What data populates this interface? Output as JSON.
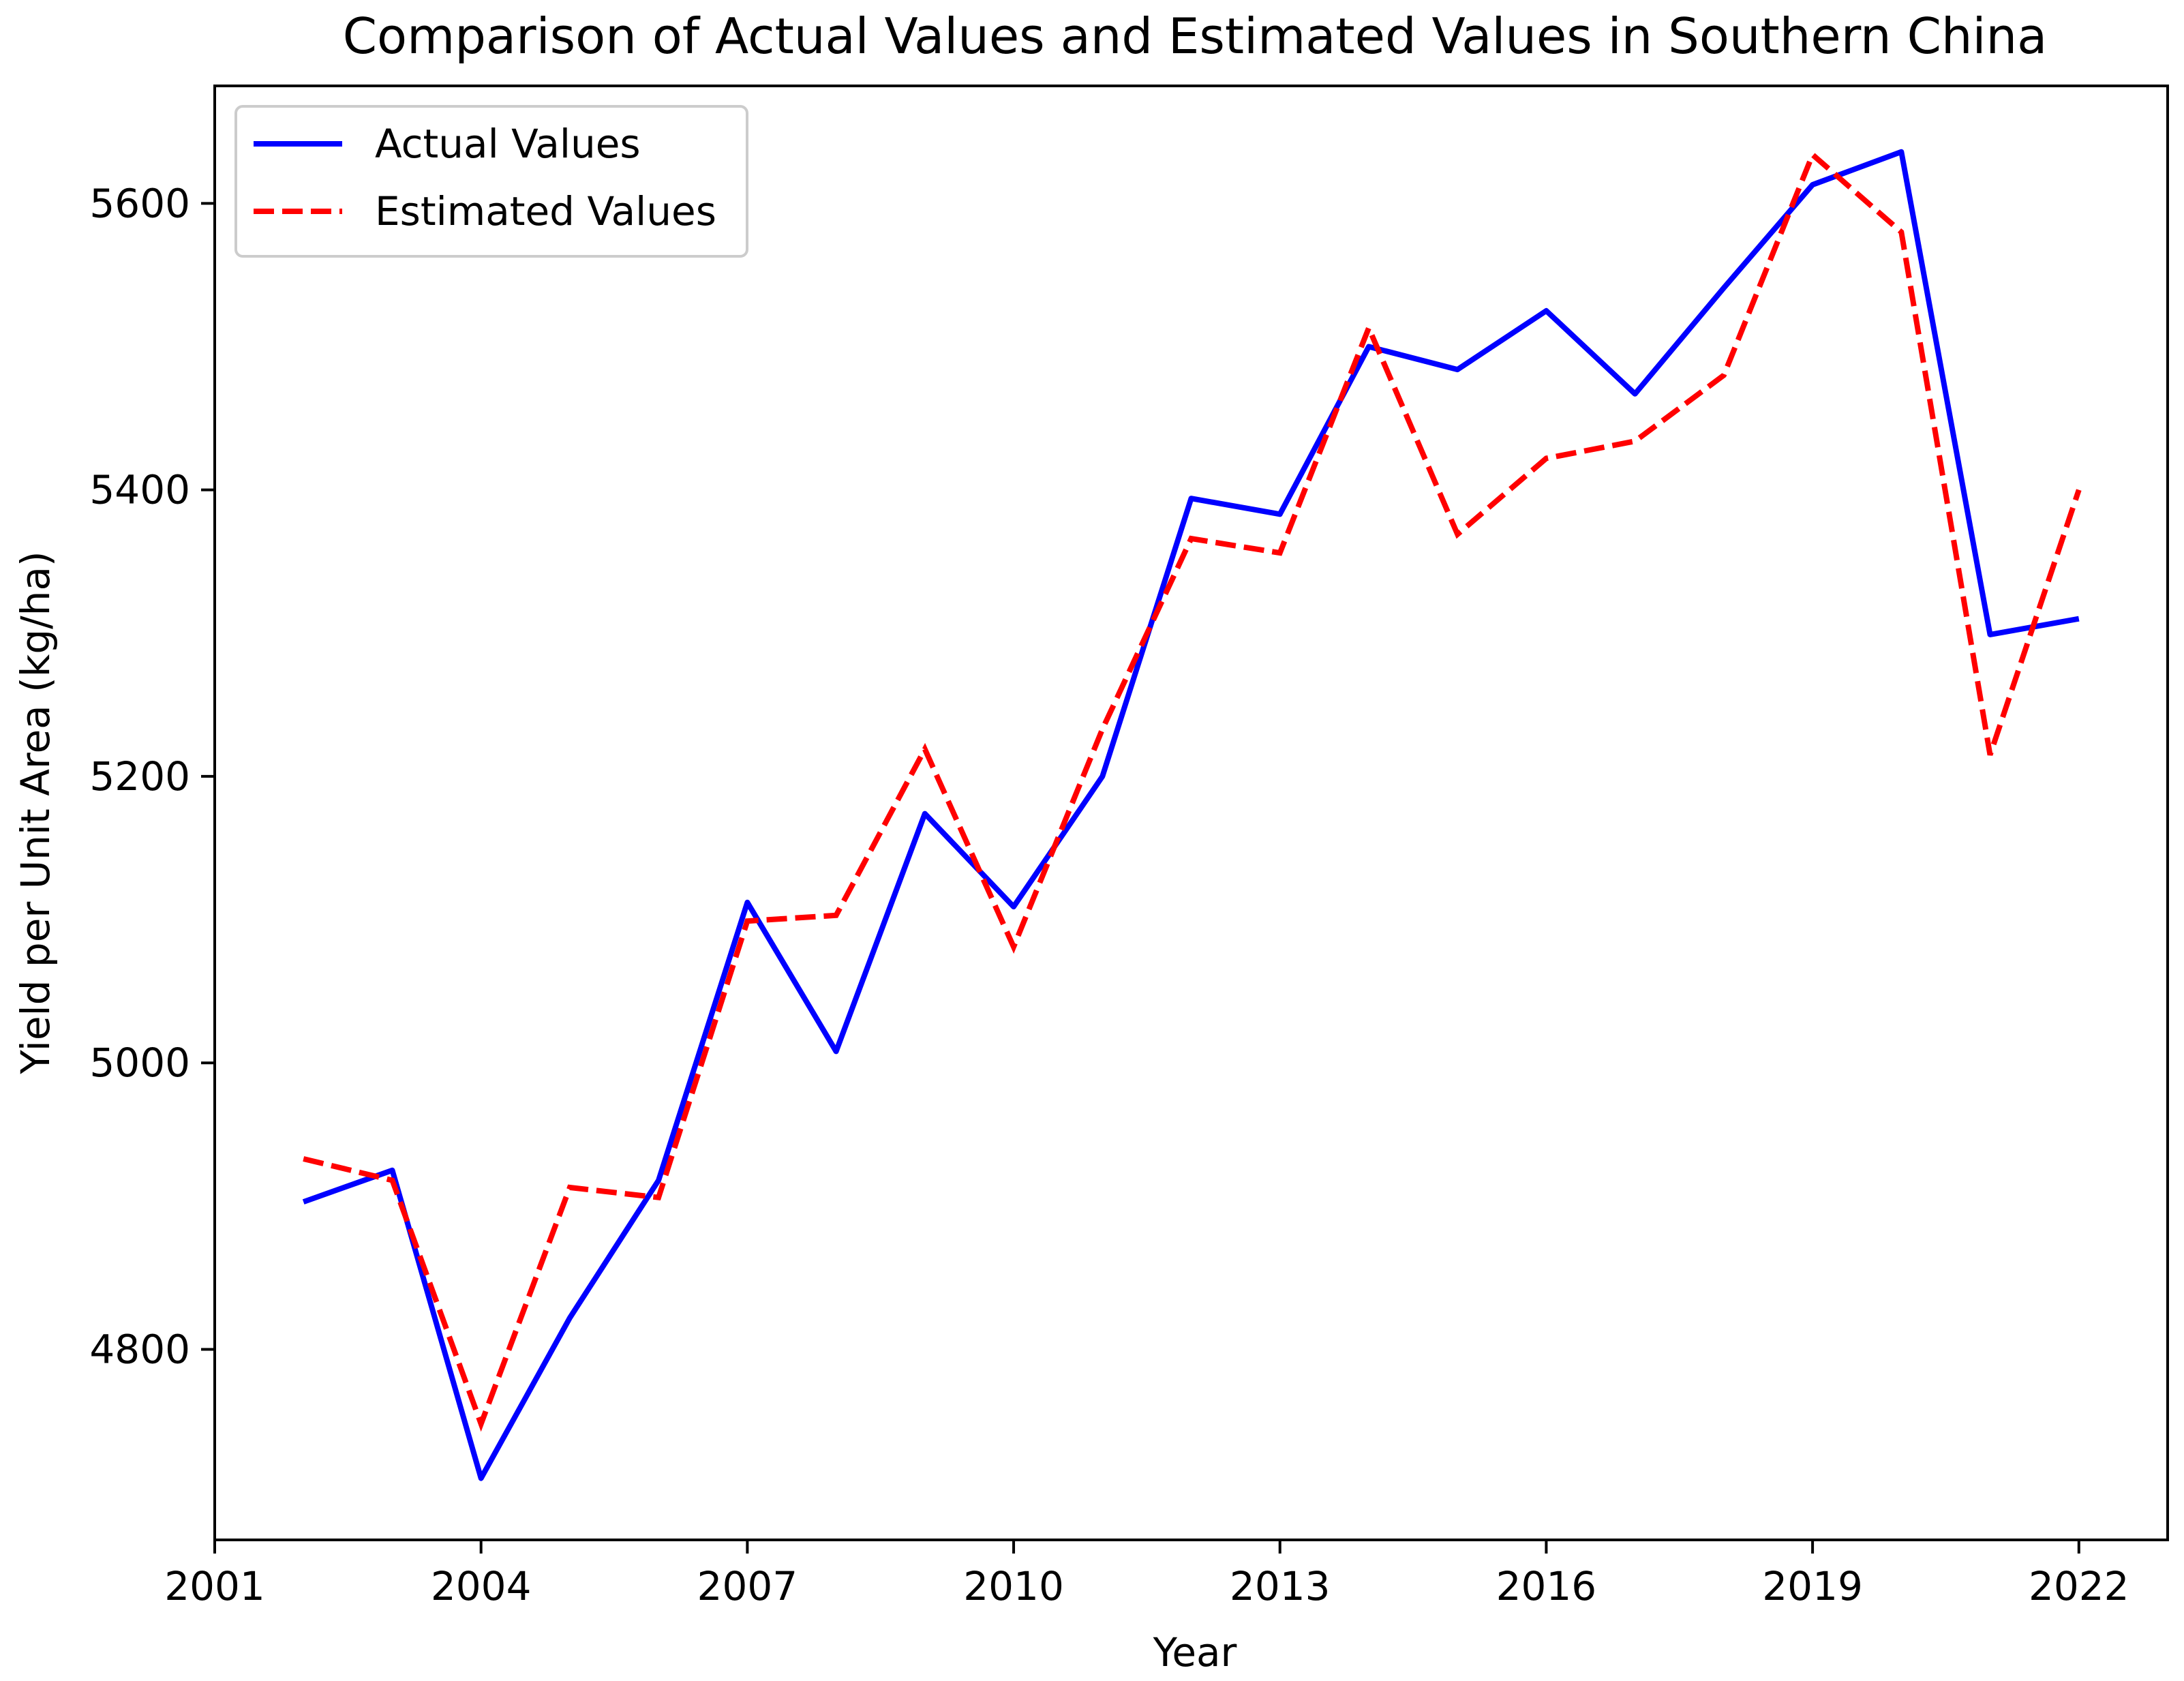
{
  "chart_data": {
    "type": "line",
    "title": "Comparison of Actual Values and Estimated Values in Southern China",
    "xlabel": "Year",
    "ylabel": "Yield per Unit Area (kg/ha)",
    "xlim": [
      2001,
      2023
    ],
    "ylim": [
      4667,
      5682
    ],
    "xticks": [
      2001,
      2004,
      2007,
      2010,
      2013,
      2016,
      2019,
      2022
    ],
    "yticks": [
      4800,
      5000,
      5200,
      5400,
      5600
    ],
    "grid": false,
    "legend_position": "top-left",
    "x": [
      2002,
      2003,
      2004,
      2005,
      2006,
      2007,
      2008,
      2009,
      2010,
      2011,
      2012,
      2013,
      2014,
      2015,
      2016,
      2017,
      2018,
      2019,
      2020,
      2021,
      2022
    ],
    "series": [
      {
        "name": "Actual Values",
        "color": "#0000ff",
        "style": "solid",
        "values": [
          4903,
          4925,
          4710,
          4822,
          4918,
          5112,
          5008,
          5174,
          5109,
          5200,
          5394,
          5383,
          5500,
          5484,
          5525,
          5467,
          5541,
          5613,
          5636,
          5299,
          5310
        ]
      },
      {
        "name": "Estimated Values",
        "color": "#ff0000",
        "style": "dashed",
        "values": [
          4933,
          4918,
          4748,
          4913,
          4906,
          5099,
          5103,
          5219,
          5081,
          5233,
          5366,
          5356,
          5513,
          5369,
          5422,
          5434,
          5480,
          5634,
          5580,
          5215,
          5400
        ]
      }
    ]
  }
}
